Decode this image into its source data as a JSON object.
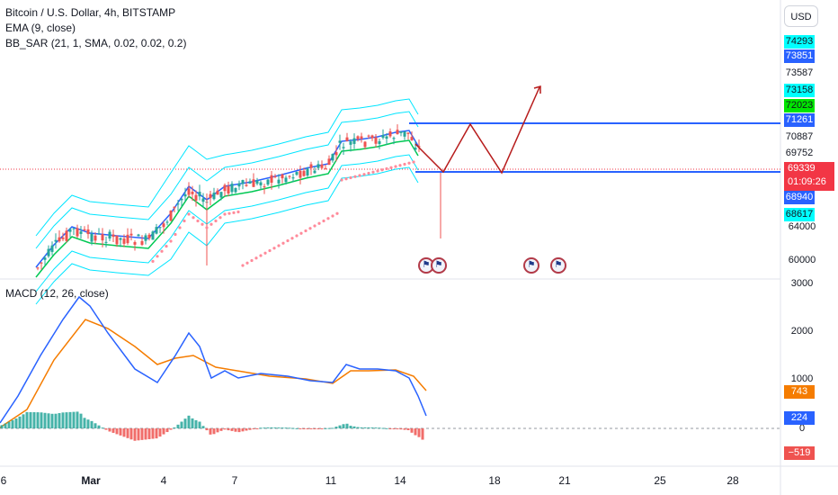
{
  "legend": {
    "symbol": "Bitcoin / U.S. Dollar, 4h, BITSTAMP",
    "ema": "EMA (9, close)",
    "bbsar": "BB_SAR (21, 1, SMA, 0.02, 0.02, 0.2)",
    "macd": "MACD (12, 26, close)"
  },
  "currency_button": "USD",
  "price_labels": [
    {
      "text": "74293",
      "bg": "#00ffff",
      "fg": "#131722"
    },
    {
      "text": "73851",
      "bg": "#2962ff",
      "fg": "#ffffff"
    },
    {
      "text": "73587",
      "bg": "#ffffff",
      "fg": "#131722"
    },
    {
      "text": "73158",
      "bg": "#00ffff",
      "fg": "#131722"
    },
    {
      "text": "72023",
      "bg": "#00e600",
      "fg": "#131722"
    },
    {
      "text": "71261",
      "bg": "#2962ff",
      "fg": "#ffffff"
    },
    {
      "text": "70887",
      "bg": "#ffffff",
      "fg": "#131722"
    },
    {
      "text": "69752",
      "bg": "#ffffff",
      "fg": "#131722"
    },
    {
      "text": "68940",
      "bg": "#2962ff",
      "fg": "#ffffff"
    },
    {
      "text": "68617",
      "bg": "#00ffff",
      "fg": "#131722"
    }
  ],
  "current_price": {
    "price": "69339",
    "countdown": "01:09:26"
  },
  "price_ticks": [
    "64000",
    "60000"
  ],
  "macd_labels": [
    {
      "text": "743",
      "bg": "#f57c00",
      "fg": "#ffffff"
    },
    {
      "text": "224",
      "bg": "#2962ff",
      "fg": "#ffffff"
    },
    {
      "text": "−519",
      "bg": "#ef5350",
      "fg": "#ffffff"
    }
  ],
  "macd_ticks": [
    "3000",
    "2000",
    "1000",
    "0"
  ],
  "x_axis": [
    "6",
    "Mar",
    "4",
    "7",
    "11",
    "14",
    "18",
    "21",
    "25",
    "28"
  ],
  "colors": {
    "up": "#26a69a",
    "down": "#ef5350",
    "bb": "#00e5ff",
    "ema": "#2962ff",
    "sma": "#00c853",
    "sar": "#ff8a9a",
    "hline": "#2962ff",
    "zigzag": "#b71c1c",
    "macd": "#2962ff",
    "signal": "#f57c00",
    "hist_up": "#26a69a",
    "hist_down": "#ef5350"
  },
  "icons": [
    "flag-us-icon",
    "flag-us-icon",
    "flag-us-icon",
    "flag-us-icon"
  ]
}
